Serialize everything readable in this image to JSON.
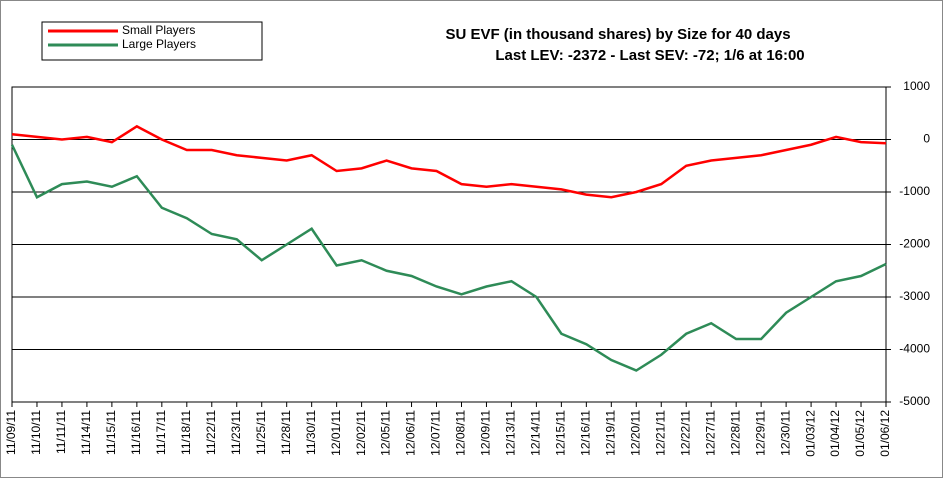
{
  "chart_data": {
    "type": "line",
    "title": "SU EVF (in thousand shares) by Size for 40 days",
    "subtitle": "Last LEV: -2372 - Last SEV: -72; 1/6 at 16:00",
    "categories": [
      "11/09/11",
      "11/10/11",
      "11/11/11",
      "11/14/11",
      "11/15/11",
      "11/16/11",
      "11/17/11",
      "11/18/11",
      "11/22/11",
      "11/23/11",
      "11/25/11",
      "11/28/11",
      "11/30/11",
      "12/01/11",
      "12/02/11",
      "12/05/11",
      "12/06/11",
      "12/07/11",
      "12/08/11",
      "12/09/11",
      "12/13/11",
      "12/14/11",
      "12/15/11",
      "12/16/11",
      "12/19/11",
      "12/20/11",
      "12/21/11",
      "12/22/11",
      "12/27/11",
      "12/28/11",
      "12/29/11",
      "12/30/11",
      "01/03/12",
      "01/04/12",
      "01/05/12",
      "01/06/12"
    ],
    "series": [
      {
        "name": "Small Players",
        "color": "#ff0000",
        "values": [
          100,
          50,
          0,
          50,
          -50,
          250,
          0,
          -200,
          -200,
          -300,
          -350,
          -400,
          -300,
          -600,
          -550,
          -400,
          -550,
          -600,
          -850,
          -900,
          -850,
          -900,
          -950,
          -1050,
          -1100,
          -1000,
          -850,
          -500,
          -400,
          -350,
          -300,
          -200,
          -100,
          50,
          -50,
          -72
        ]
      },
      {
        "name": "Large Players",
        "color": "#2e8b57",
        "values": [
          -100,
          -1100,
          -850,
          -800,
          -900,
          -700,
          -1300,
          -1500,
          -1800,
          -1900,
          -2300,
          -2000,
          -1700,
          -2400,
          -2300,
          -2500,
          -2600,
          -2800,
          -2950,
          -2800,
          -2700,
          -3000,
          -3700,
          -3900,
          -4200,
          -4400,
          -4100,
          -3700,
          -3500,
          -3800,
          -3800,
          -3300,
          -3000,
          -2700,
          -2600,
          -2372
        ]
      }
    ],
    "ylim": [
      -5000,
      1000
    ],
    "yticks": [
      1000,
      0,
      -1000,
      -2000,
      -3000,
      -4000,
      -5000
    ],
    "grid": true,
    "legend": "top-left"
  }
}
